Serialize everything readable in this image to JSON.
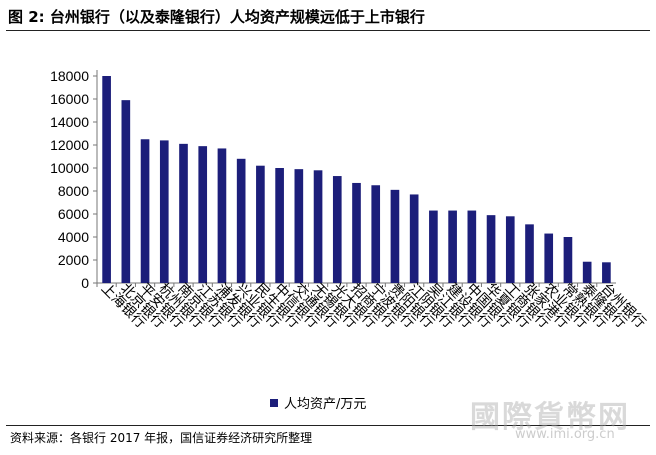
{
  "figure": {
    "title": "图 2:  台州银行（以及泰隆银行）人均资产规模远低于上市银行",
    "source": "资料来源：各银行 2017 年报，国信证券经济研究所整理",
    "watermark": "國際貨幣网",
    "watermark_url": "www.imi.org.cn"
  },
  "chart_data": {
    "type": "bar",
    "title": "",
    "xlabel": "",
    "ylabel": "",
    "ylim": [
      0,
      18000
    ],
    "yticks": [
      0,
      2000,
      4000,
      6000,
      8000,
      10000,
      12000,
      14000,
      16000,
      18000
    ],
    "grid": false,
    "legend_position": "bottom",
    "categories": [
      "上海银行",
      "北京银行",
      "平安银行",
      "杭州银行",
      "南京银行",
      "江苏银行",
      "浦发银行",
      "兴业银行",
      "民生银行",
      "中信银行",
      "交通银行",
      "无锡银行",
      "光大银行",
      "招商银行",
      "宁波银行",
      "贵阳银行",
      "江阴银行",
      "吴江银行",
      "建设银行",
      "中国银行",
      "华夏银行",
      "工商银行",
      "张家港行",
      "农业银行",
      "常熟银行",
      "泰隆银行",
      "台州银行"
    ],
    "series": [
      {
        "name": "人均资产/万元",
        "color": "#1c1e7a",
        "values": [
          18000,
          15900,
          12500,
          12400,
          12100,
          11900,
          11700,
          10800,
          10200,
          10000,
          9900,
          9800,
          9300,
          8700,
          8500,
          8100,
          7700,
          6300,
          6300,
          6300,
          5900,
          5800,
          5100,
          4300,
          4000,
          1850,
          1800
        ]
      }
    ]
  }
}
